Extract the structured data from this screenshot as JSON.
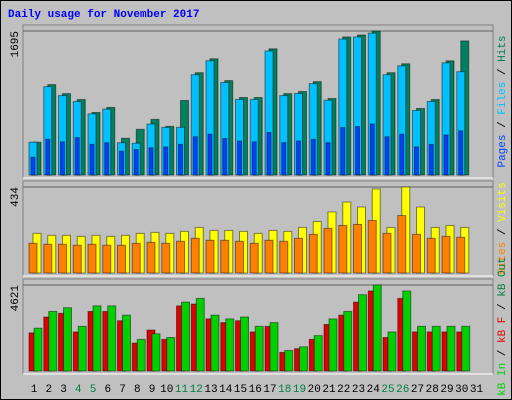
{
  "chart_data": {
    "type": "bar",
    "title": "Daily usage for November 2017",
    "categories": [
      "1",
      "2",
      "3",
      "4",
      "5",
      "6",
      "7",
      "8",
      "9",
      "10",
      "11",
      "12",
      "13",
      "14",
      "15",
      "16",
      "17",
      "18",
      "19",
      "20",
      "21",
      "22",
      "23",
      "24",
      "25",
      "26",
      "27",
      "28",
      "29",
      "30",
      "31"
    ],
    "category_colors": [
      "#000000",
      "#000000",
      "#000000",
      "#008040",
      "#008040",
      "#000000",
      "#000000",
      "#000000",
      "#000000",
      "#000000",
      "#008040",
      "#008040",
      "#000000",
      "#000000",
      "#000000",
      "#000000",
      "#000000",
      "#008040",
      "#008040",
      "#000000",
      "#000000",
      "#000000",
      "#000000",
      "#000000",
      "#008040",
      "#008040",
      "#000000",
      "#000000",
      "#000000",
      "#000000",
      "#000000"
    ],
    "separator": "/",
    "panels": [
      {
        "ylim": [
          0,
          1695
        ],
        "yticks": [
          1695
        ],
        "series": [
          {
            "name": "Hits",
            "color": "#00805c",
            "values": [
              386,
              1064,
              958,
              888,
              736,
              795,
              432,
              538,
              655,
              573,
              877,
              1204,
              1368,
              1111,
              912,
              912,
              1485,
              958,
              982,
              1099,
              900,
              1625,
              1648,
              1695,
              1204,
              1309,
              783,
              888,
              1344,
              1578,
              null
            ]
          },
          {
            "name": "Files",
            "color": "#00c0ff",
            "values": [
              386,
              1040,
              935,
              865,
              720,
              775,
              380,
              374,
              600,
              561,
              561,
              1180,
              1345,
              1090,
              890,
              890,
              1460,
              935,
              960,
              1075,
              880,
              1600,
              1625,
              1670,
              1180,
              1285,
              760,
              865,
              1320,
              1216,
              null
            ]
          },
          {
            "name": "Pages",
            "color": "#0040ff",
            "values": [
              210,
              420,
              390,
              440,
              360,
              380,
              280,
              300,
              320,
              330,
              360,
              450,
              480,
              430,
              400,
              390,
              500,
              380,
              400,
              420,
              380,
              560,
              570,
              600,
              450,
              480,
              330,
              360,
              470,
              520,
              null
            ]
          }
        ]
      },
      {
        "ylim": [
          0,
          434
        ],
        "yticks": [
          434
        ],
        "series": [
          {
            "name": "Visits",
            "color": "#ffff00",
            "values": [
              200,
              190,
              190,
              185,
              190,
              185,
              190,
              200,
              205,
              200,
              210,
              230,
              215,
              215,
              210,
              200,
              215,
              210,
              230,
              260,
              308,
              358,
              333,
              424,
              230,
              434,
              333,
              230,
              240,
              230,
              null
            ]
          },
          {
            "name": "Sites",
            "color": "#ff8000",
            "values": [
              150,
              145,
              145,
              140,
              145,
              140,
              140,
              150,
              155,
              150,
              160,
              175,
              165,
              165,
              160,
              150,
              165,
              160,
              175,
              195,
              225,
              240,
              245,
              265,
              200,
              290,
              195,
              175,
              185,
              180,
              null
            ]
          }
        ]
      },
      {
        "ylim": [
          0,
          4621
        ],
        "yticks": [
          4621
        ],
        "extra_label": {
          "text": "kB Out",
          "color": "#008040"
        },
        "series": [
          {
            "name": "kB F",
            "color": "#e00000",
            "values": [
              2050,
              2900,
              3100,
              2100,
              3200,
              3200,
              2700,
              1500,
              2200,
              1700,
              3500,
              3600,
              2800,
              2600,
              2700,
              2100,
              2400,
              1000,
              1200,
              1700,
              2500,
              3000,
              3700,
              4300,
              1800,
              3900,
              2100,
              2100,
              2100,
              2100,
              null
            ]
          },
          {
            "name": "kB In",
            "color": "#00d000",
            "values": [
              2300,
              3200,
              3400,
              2400,
              3500,
              3500,
              3000,
              1700,
              2000,
              1800,
              3700,
              3900,
              3000,
              2800,
              2900,
              2400,
              2600,
              1100,
              1300,
              1900,
              2800,
              3200,
              4100,
              4621,
              2100,
              4300,
              2400,
              2400,
              2400,
              2400,
              null
            ]
          }
        ]
      }
    ]
  }
}
